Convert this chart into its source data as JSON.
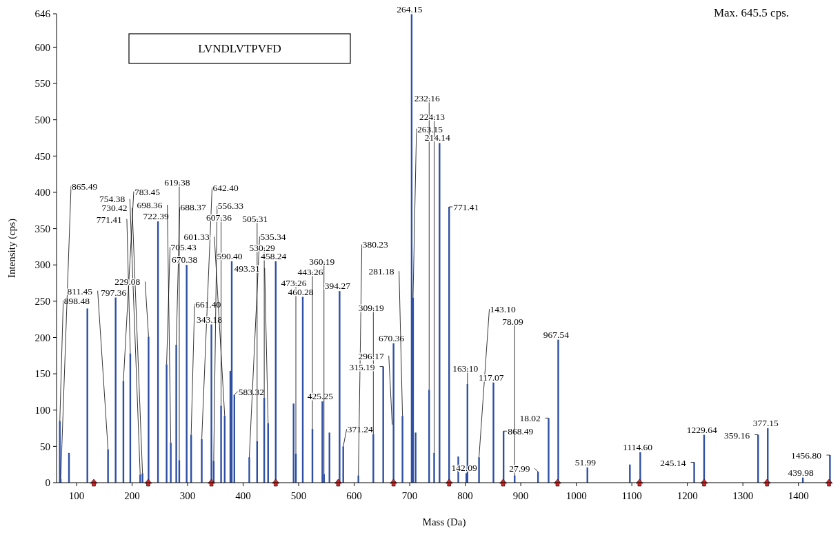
{
  "chart_data": {
    "type": "bar",
    "title": "LVNDLVTPVFD",
    "xlabel": "Mass (Da)",
    "ylabel": "Intensity (cps)",
    "xlim": [
      64,
      1460
    ],
    "xticks": [
      100,
      200,
      300,
      400,
      500,
      600,
      700,
      800,
      900,
      1000,
      1100,
      1200,
      1300,
      1400
    ],
    "ylim": [
      0,
      646
    ],
    "yticks": [
      0,
      50,
      100,
      150,
      200,
      250,
      300,
      350,
      400,
      450,
      500,
      550,
      600,
      646
    ],
    "grid": false,
    "series": [
      {
        "color": "#2e4fa3",
        "x": [
          69.9,
          71.5,
          86.4,
          119.5,
          156.7,
          170.4,
          184.4,
          196.8,
          214.6,
          218.8,
          229.7,
          246.7,
          262.2,
          269.7,
          279.6,
          285,
          298.3,
          306.4,
          325.5,
          342.9,
          347,
          360.3,
          366.8,
          377,
          379.5,
          384.2,
          411.1,
          425.2,
          438,
          445,
          458.7,
          490.9,
          495,
          507.4,
          524.8,
          542.7,
          545.6,
          555.5,
          573.7,
          580.3,
          607.6,
          634.5,
          652.3,
          670.9,
          687,
          703.5,
          706,
          710.6,
          735,
          744,
          753.7,
          771,
          787.5,
          802,
          804,
          824.8,
          850.8,
          869,
          889,
          931.1,
          950.1,
          967.5,
          1020,
          1096.5,
          1115.2,
          1212.3,
          1230.2,
          1327.4,
          1344.8,
          1408,
          1456.8
        ],
        "values": [
          85,
          5,
          41,
          240,
          46,
          255,
          140,
          178,
          11,
          13,
          201,
          360,
          163,
          55,
          190,
          31,
          300,
          66,
          60,
          218,
          30,
          106,
          92,
          154,
          305,
          121,
          35,
          57,
          117,
          82,
          305,
          109,
          40,
          256,
          74,
          112,
          12,
          69,
          264,
          50,
          10,
          67,
          160,
          192,
          92,
          645.5,
          255,
          69,
          128,
          41,
          468,
          380,
          36,
          13,
          136,
          35,
          138,
          71,
          10,
          15,
          89,
          197,
          21,
          25,
          42,
          28,
          66,
          66,
          75,
          7,
          38
        ]
      },
      {
        "type": "scatter",
        "color": "#e02020",
        "marker": "triangle",
        "x": [
          131.1,
          229.1,
          342.9,
          458.7,
          571.2,
          670.9,
          771,
          868.2,
          966.2,
          1113.9,
          1230.2,
          1343.5,
          1455.1
        ],
        "values": [
          0,
          0,
          0,
          0,
          0,
          0,
          0,
          0,
          0,
          0,
          0,
          0,
          0
        ]
      }
    ],
    "annotations": [
      "Max. 645.5 cps.",
      {
        "text": "898.48",
        "x": 69.9,
        "y": 85
      },
      {
        "text": "865.49",
        "x": 71.5,
        "y": 5
      },
      {
        "text": "811.45",
        "x": 156.7,
        "y": 46
      },
      {
        "text": "797.36",
        "x": 170.4,
        "y": 255
      },
      {
        "text": "783.45",
        "x": 184.4,
        "y": 140
      },
      {
        "text": "771.41",
        "x": 196.8,
        "y": 178
      },
      {
        "text": "754.38",
        "x": 214.6,
        "y": 11
      },
      {
        "text": "730.42",
        "x": 218.8,
        "y": 13
      },
      {
        "text": "229.08",
        "x": 229.7,
        "y": 201
      },
      {
        "text": "722.39",
        "x": 246.7,
        "y": 360
      },
      {
        "text": "705.43",
        "x": 262.2,
        "y": 163
      },
      {
        "text": "698.36",
        "x": 269.7,
        "y": 55
      },
      {
        "text": "688.37",
        "x": 279.6,
        "y": 190
      },
      {
        "text": "619.38",
        "x": 285,
        "y": 31
      },
      {
        "text": "670.38",
        "x": 298.3,
        "y": 300
      },
      {
        "text": "661.40",
        "x": 306.4,
        "y": 66
      },
      {
        "text": "642.40",
        "x": 325.5,
        "y": 60
      },
      {
        "text": "343.18",
        "x": 342.9,
        "y": 218
      },
      {
        "text": "556.33",
        "x": 347,
        "y": 30
      },
      {
        "text": "607.36",
        "x": 360.3,
        "y": 106
      },
      {
        "text": "601.33",
        "x": 366.8,
        "y": 92
      },
      {
        "text": "590.40",
        "x": 379.5,
        "y": 305
      },
      {
        "text": "583.32",
        "x": 384.2,
        "y": 121
      },
      {
        "text": "535.34",
        "x": 411.1,
        "y": 35
      },
      {
        "text": "505.31",
        "x": 425.2,
        "y": 57
      },
      {
        "text": "530.29",
        "x": 438,
        "y": 117
      },
      {
        "text": "493.31",
        "x": 445,
        "y": 82
      },
      {
        "text": "458.24",
        "x": 458.7,
        "y": 305
      },
      {
        "text": "473.26",
        "x": 495,
        "y": 40
      },
      {
        "text": "460.28",
        "x": 507.4,
        "y": 256
      },
      {
        "text": "443.26",
        "x": 524.8,
        "y": 74
      },
      {
        "text": "425.25",
        "x": 542.7,
        "y": 112
      },
      {
        "text": "360.19",
        "x": 545.6,
        "y": 12
      },
      {
        "text": "394.27",
        "x": 573.7,
        "y": 264
      },
      {
        "text": "371.24",
        "x": 580.3,
        "y": 50
      },
      {
        "text": "380.23",
        "x": 607.6,
        "y": 10
      },
      {
        "text": "309.19",
        "x": 634.5,
        "y": 67
      },
      {
        "text": "315.19",
        "x": 652.3,
        "y": 160
      },
      {
        "text": "670.36",
        "x": 670.9,
        "y": 192
      },
      {
        "text": "296.17",
        "x": 668.5,
        "y": 80
      },
      {
        "text": "281.18",
        "x": 687,
        "y": 92
      },
      {
        "text": "264.15",
        "x": 703.5,
        "y": 645.5
      },
      {
        "text": "263.15",
        "x": 706,
        "y": 255
      },
      {
        "text": "232.16",
        "x": 735,
        "y": 128
      },
      {
        "text": "224.13",
        "x": 744,
        "y": 41
      },
      {
        "text": "214.14",
        "x": 753.7,
        "y": 468
      },
      {
        "text": "771.41",
        "x": 771,
        "y": 380
      },
      {
        "text": "163.10",
        "x": 804,
        "y": 136
      },
      {
        "text": "142.09",
        "x": 802,
        "y": 13
      },
      {
        "text": "143.10",
        "x": 824.8,
        "y": 35
      },
      {
        "text": "117.07",
        "x": 850.8,
        "y": 138
      },
      {
        "text": "868.49",
        "x": 869,
        "y": 71
      },
      {
        "text": "78.09",
        "x": 889,
        "y": 10
      },
      {
        "text": "27.99",
        "x": 931.1,
        "y": 15
      },
      {
        "text": "18.02",
        "x": 950.1,
        "y": 89
      },
      {
        "text": "967.54",
        "x": 967.5,
        "y": 197
      },
      {
        "text": "51.99",
        "x": 1020,
        "y": 21
      },
      {
        "text": "1114.60",
        "x": 1115.2,
        "y": 42
      },
      {
        "text": "245.14",
        "x": 1212.3,
        "y": 28
      },
      {
        "text": "1229.64",
        "x": 1230.2,
        "y": 66
      },
      {
        "text": "359.16",
        "x": 1327.4,
        "y": 66
      },
      {
        "text": "377.15",
        "x": 1344.8,
        "y": 75
      },
      {
        "text": "439.98",
        "x": 1408,
        "y": 7
      },
      {
        "text": "1456.80",
        "x": 1456.8,
        "y": 38
      }
    ]
  }
}
